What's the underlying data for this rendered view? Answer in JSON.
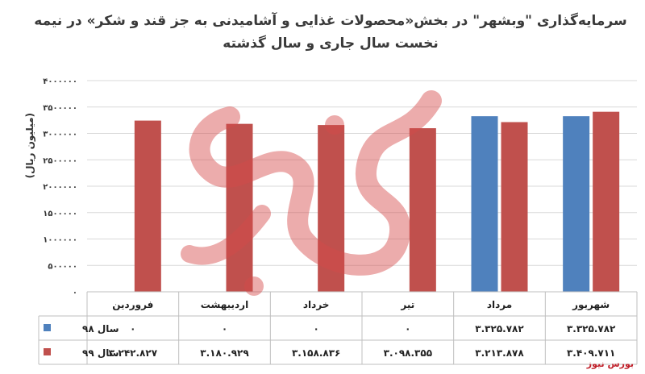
{
  "chart_data": {
    "type": "bar",
    "title": "سرمایه‌گذاری \"وبشهر\" در بخش«محصولات غذایی و آشامیدنی به جز قند و شکر» در نیمه نخست سال جاری و سال گذشته",
    "ylabel": "(میلیون ریال)",
    "xlabel": "",
    "ylim": [
      0,
      4000000
    ],
    "yticks": [
      0,
      500000,
      1000000,
      1500000,
      2000000,
      2500000,
      3000000,
      3500000,
      4000000
    ],
    "ytick_labels": [
      "۰",
      "۵۰۰۰۰۰",
      "۱۰۰۰۰۰۰",
      "۱۵۰۰۰۰۰",
      "۲۰۰۰۰۰۰",
      "۲۵۰۰۰۰۰",
      "۳۰۰۰۰۰۰",
      "۳۵۰۰۰۰۰",
      "۴۰۰۰۰۰۰"
    ],
    "grid": true,
    "legend": "table-left",
    "categories": [
      "فروردین",
      "اردیبهشت",
      "خرداد",
      "تیر",
      "مرداد",
      "شهریور"
    ],
    "series": [
      {
        "name": "سال ۹۸",
        "color": "#4f81bd",
        "values": [
          0,
          0,
          0,
          0,
          3325782,
          3325782
        ],
        "labels": [
          "۰",
          "۰",
          "۰",
          "۰",
          "۳.۳۲۵.۷۸۲",
          "۳.۳۲۵.۷۸۲"
        ]
      },
      {
        "name": "سال ۹۹",
        "color": "#c0504d",
        "values": [
          3242827,
          3180929,
          3158836,
          3098355,
          3213878,
          3409711
        ],
        "labels": [
          "۳.۲۴۲.۸۲۷",
          "۳.۱۸۰.۹۲۹",
          "۳.۱۵۸.۸۳۶",
          "۳.۰۹۸.۳۵۵",
          "۳.۲۱۳.۸۷۸",
          "۳.۴۰۹.۷۱۱"
        ]
      }
    ]
  },
  "brand": "بورس نیوز",
  "gridline_color": "#d9d9d9",
  "table_border_color": "#bfbfbf"
}
